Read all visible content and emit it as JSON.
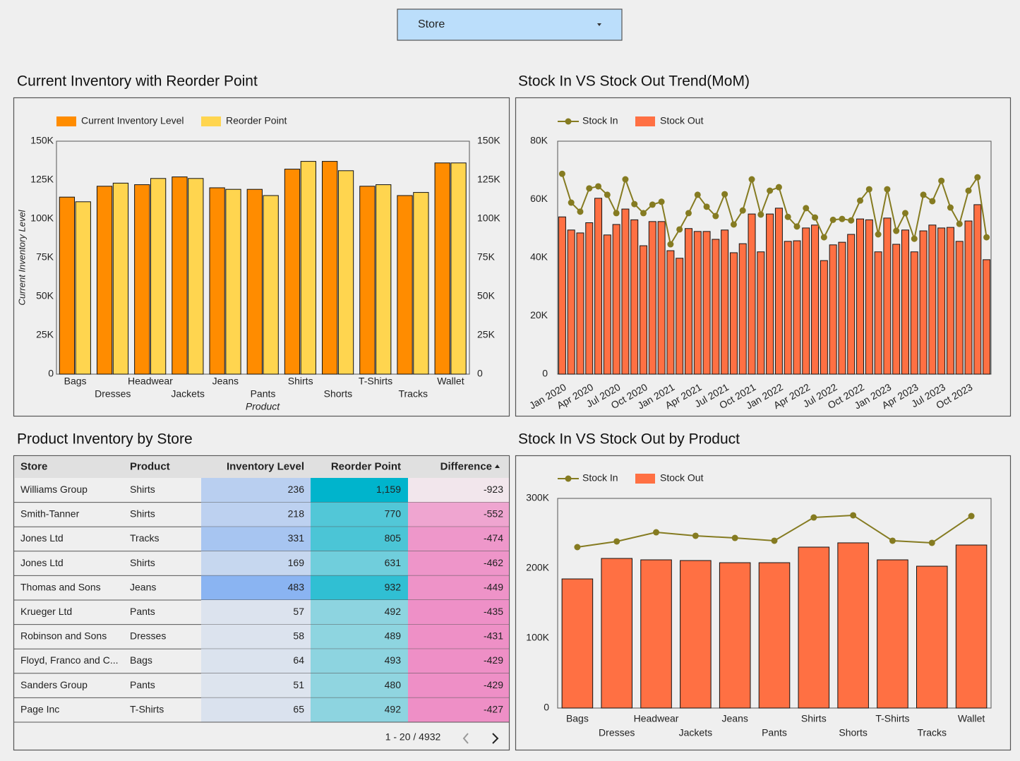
{
  "filter": {
    "label": "Store"
  },
  "chart_data": [
    {
      "type": "bar",
      "title": "Current Inventory with Reorder Point",
      "categories": [
        "Bags",
        "Dresses",
        "Headwear",
        "Jackets",
        "Jeans",
        "Pants",
        "Shirts",
        "Shorts",
        "T-Shirts",
        "Tracks",
        "Wallet"
      ],
      "x_label": "Product",
      "y_label": "Current Inventory Level",
      "series": [
        {
          "name": "Current Inventory Level",
          "type": "bar",
          "color": "#ff8c00",
          "values": [
            114000,
            121000,
            122000,
            127000,
            120000,
            119000,
            132000,
            137000,
            121000,
            115000,
            136000
          ]
        },
        {
          "name": "Reorder Point",
          "type": "bar",
          "axis": "y2",
          "color": "#ffd54f",
          "values": [
            111000,
            123000,
            126000,
            126000,
            119000,
            115000,
            137000,
            131000,
            122000,
            117000,
            136000
          ]
        }
      ],
      "ylim": [
        0,
        150000
      ],
      "yticks": [
        0,
        {
          "value": 25000,
          "label": "25K"
        },
        {
          "value": 50000,
          "label": "50K"
        },
        {
          "value": 75000,
          "label": "75K"
        },
        {
          "value": 100000,
          "label": "100K"
        },
        {
          "value": 125000,
          "label": "125K"
        },
        {
          "value": 150000,
          "label": "150K"
        }
      ],
      "y2lim": [
        0,
        150000
      ],
      "y2ticks": [
        0,
        {
          "value": 25000,
          "label": "25K"
        },
        {
          "value": 50000,
          "label": "50K"
        },
        {
          "value": 75000,
          "label": "75K"
        },
        {
          "value": 100000,
          "label": "100K"
        },
        {
          "value": 125000,
          "label": "125K"
        },
        {
          "value": 150000,
          "label": "150K"
        }
      ],
      "grid": false,
      "legend": "top-left"
    },
    {
      "type": "combo",
      "title": "Stock In VS Stock Out Trend(MoM)",
      "categories": [
        "Jan 2020",
        null,
        null,
        "Apr 2020",
        null,
        null,
        "Jul 2020",
        null,
        null,
        "Oct 2020",
        null,
        null,
        "Jan 2021",
        null,
        null,
        "Apr 2021",
        null,
        null,
        "Jul 2021",
        null,
        null,
        "Oct 2021",
        null,
        null,
        "Jan 2022",
        null,
        null,
        "Apr 2022",
        null,
        null,
        "Jul 2022",
        null,
        null,
        "Oct 2022",
        null,
        null,
        "Jan 2023",
        null,
        null,
        "Apr 2023",
        null,
        null,
        "Jul 2023",
        null,
        null,
        "Oct 2023",
        null,
        null
      ],
      "series": [
        {
          "name": "Stock In",
          "type": "line",
          "color": "#857b21",
          "values": [
            68800,
            58900,
            55800,
            63800,
            64500,
            61600,
            55300,
            66900,
            58400,
            55300,
            58200,
            59200,
            44600,
            49700,
            55300,
            61600,
            57500,
            54300,
            61800,
            51400,
            56200,
            66900,
            54800,
            63000,
            64200,
            54000,
            50700,
            57000,
            53800,
            47000,
            53000,
            53300,
            52800,
            59600,
            63500,
            48000,
            63500,
            49200,
            55300,
            46500,
            61600,
            59400,
            66400,
            57200,
            51600,
            63000,
            67600,
            47000
          ]
        },
        {
          "name": "Stock Out",
          "type": "bar",
          "color": "#ff7043",
          "values": [
            54000,
            49500,
            48500,
            52000,
            60400,
            47800,
            51400,
            56700,
            53000,
            44100,
            52400,
            52400,
            42400,
            39800,
            50000,
            49000,
            49000,
            46300,
            49500,
            41700,
            44800,
            55000,
            42000,
            55000,
            57000,
            45600,
            45800,
            50200,
            51200,
            39000,
            44400,
            45300,
            48000,
            53300,
            53000,
            42000,
            53600,
            44600,
            49500,
            42000,
            49200,
            51200,
            50200,
            50400,
            45600,
            52600,
            58200,
            39300
          ]
        }
      ],
      "ylim": [
        0,
        80000
      ],
      "yticks": [
        0,
        {
          "value": 20000,
          "label": "20K"
        },
        {
          "value": 40000,
          "label": "40K"
        },
        {
          "value": 60000,
          "label": "60K"
        },
        {
          "value": 80000,
          "label": "80K"
        }
      ],
      "grid": false,
      "legend": "top-left"
    },
    {
      "type": "combo",
      "title": "Stock In VS Stock Out by Product",
      "categories": [
        "Bags",
        "Dresses",
        "Headwear",
        "Jackets",
        "Jeans",
        "Pants",
        "Shirts",
        "Shorts",
        "T-Shirts",
        "Tracks",
        "Wallet"
      ],
      "series": [
        {
          "name": "Stock In",
          "type": "line",
          "color": "#857b21",
          "values": [
            230300,
            238400,
            251500,
            246500,
            243400,
            239400,
            272700,
            275800,
            239400,
            236400,
            274700
          ]
        },
        {
          "name": "Stock Out",
          "type": "bar",
          "color": "#ff7043",
          "values": [
            184800,
            214100,
            212100,
            211100,
            208000,
            208000,
            230300,
            236400,
            212100,
            203000,
            233300
          ]
        }
      ],
      "ylim": [
        0,
        300000
      ],
      "yticks": [
        0,
        {
          "value": 100000,
          "label": "100K"
        },
        {
          "value": 200000,
          "label": "200K"
        },
        {
          "value": 300000,
          "label": "300K"
        }
      ],
      "grid": false,
      "legend": "top-left"
    }
  ],
  "table": {
    "title": "Product Inventory by Store",
    "columns": [
      "Store",
      "Product",
      "Inventory Level",
      "Reorder Point",
      "Difference"
    ],
    "rows": [
      [
        "Williams Group",
        "Shirts",
        "236",
        "1,159",
        "-923"
      ],
      [
        "Smith-Tanner",
        "Shirts",
        "218",
        "770",
        "-552"
      ],
      [
        "Jones Ltd",
        "Tracks",
        "331",
        "805",
        "-474"
      ],
      [
        "Jones Ltd",
        "Shirts",
        "169",
        "631",
        "-462"
      ],
      [
        "Thomas and Sons",
        "Jeans",
        "483",
        "932",
        "-449"
      ],
      [
        "Krueger Ltd",
        "Pants",
        "57",
        "492",
        "-435"
      ],
      [
        "Robinson and Sons",
        "Dresses",
        "58",
        "489",
        "-431"
      ],
      [
        "Floyd, Franco and C...",
        "Bags",
        "64",
        "493",
        "-429"
      ],
      [
        "Sanders Group",
        "Pants",
        "51",
        "480",
        "-429"
      ],
      [
        "Page Inc",
        "T-Shirts",
        "65",
        "492",
        "-427"
      ]
    ],
    "pagination": "1 - 20 / 4932"
  }
}
